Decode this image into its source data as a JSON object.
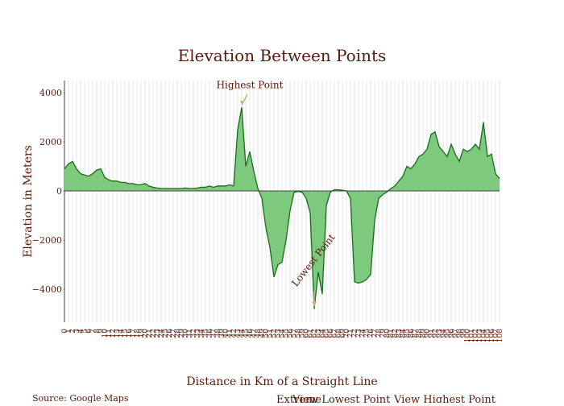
{
  "chart_data": {
    "type": "area",
    "title": "Elevation Between Points",
    "xlabel": "Distance in Km of a Straight Line",
    "ylabel": "Elevation in Meters",
    "source": "Source: Google Maps",
    "buttons": [
      "Extreme",
      "View Lowest Point",
      "View Highest Point"
    ],
    "annotations": {
      "highest": "Highest Point",
      "lowest": "Lowest Point"
    },
    "fill_color": "#7dc97d",
    "line_color": "#1a6b1a",
    "grid": true,
    "x": [
      0,
      1,
      2,
      3,
      4,
      5,
      6,
      7,
      8,
      9,
      10,
      11,
      12,
      13,
      14,
      15,
      16,
      17,
      18,
      19,
      20,
      21,
      22,
      23,
      24,
      25,
      26,
      27,
      28,
      29,
      30,
      31,
      32,
      33,
      34,
      35,
      36,
      37,
      38,
      39,
      40,
      41,
      42,
      43,
      44,
      45,
      46,
      47,
      48,
      49,
      50,
      51,
      52,
      53,
      54,
      55,
      56,
      57,
      58,
      59,
      60,
      61,
      62,
      63,
      64,
      65,
      66,
      67,
      68,
      69,
      70,
      71,
      72,
      73,
      74,
      75,
      76,
      77,
      78,
      79,
      80,
      81,
      82,
      83,
      84,
      85,
      86,
      87,
      88,
      89,
      90,
      91,
      92,
      93,
      94,
      95,
      96,
      97,
      98,
      99,
      100,
      101,
      102,
      103,
      104,
      105,
      106,
      107,
      108
    ],
    "values": [
      900,
      1100,
      1200,
      900,
      700,
      650,
      600,
      700,
      850,
      900,
      550,
      450,
      400,
      400,
      350,
      350,
      300,
      300,
      250,
      250,
      300,
      200,
      150,
      120,
      100,
      100,
      100,
      100,
      100,
      100,
      120,
      100,
      100,
      120,
      150,
      150,
      200,
      150,
      200,
      200,
      200,
      250,
      200,
      2500,
      3400,
      1000,
      1600,
      800,
      100,
      -300,
      -1500,
      -2300,
      -3500,
      -3000,
      -2900,
      -2000,
      -800,
      -50,
      -20,
      -50,
      -300,
      -900,
      -4800,
      -3300,
      -4200,
      -600,
      -50,
      50,
      50,
      30,
      0,
      -300,
      -3700,
      -3750,
      -3700,
      -3600,
      -3400,
      -1200,
      -300,
      -150,
      -50,
      100,
      200,
      400,
      600,
      1000,
      900,
      1100,
      1400,
      1500,
      1700,
      2300,
      2400,
      1800,
      1600,
      1400,
      1900,
      1500,
      1200,
      1700,
      1600,
      1700,
      1900,
      1700,
      2800,
      1400,
      1500,
      700,
      500
    ],
    "xlim": [
      0,
      108
    ],
    "ylim": [
      -5340,
      4490
    ],
    "yticks": [
      {
        "value": -4000,
        "label": "−4000"
      },
      {
        "value": -2000,
        "label": "−2000"
      },
      0,
      2000,
      4000
    ]
  }
}
